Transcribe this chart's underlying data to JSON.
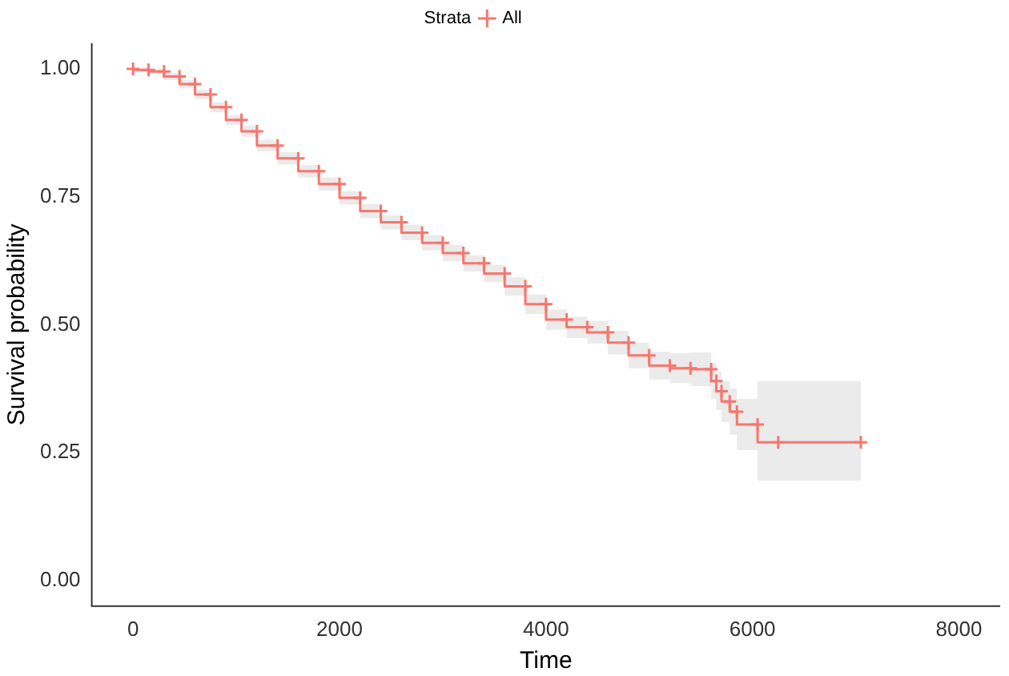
{
  "chart_data": {
    "type": "step",
    "xlabel": "Time",
    "ylabel": "Survival probability",
    "legend_title": "Strata",
    "legend": "top",
    "marker": "cross",
    "grid": false,
    "xlim": [
      -400,
      8400
    ],
    "xticks": [
      0,
      2000,
      4000,
      6000,
      8000
    ],
    "ylim": [
      -0.05,
      1.05
    ],
    "yticks": [
      {
        "value": 0,
        "label": "0.00"
      },
      {
        "value": 0.25,
        "label": "0.25"
      },
      {
        "value": 0.5,
        "label": "0.50"
      },
      {
        "value": 0.75,
        "label": "0.75"
      },
      {
        "value": 1,
        "label": "1.00"
      }
    ],
    "x": [
      0,
      150,
      300,
      450,
      600,
      750,
      900,
      1050,
      1200,
      1400,
      1600,
      1800,
      2000,
      2200,
      2400,
      2600,
      2800,
      3000,
      3200,
      3400,
      3600,
      3800,
      4000,
      4200,
      4400,
      4600,
      4800,
      5000,
      5200,
      5400,
      5600,
      5650,
      5700,
      5780,
      5850,
      6050,
      6250,
      7050
    ],
    "series": [
      {
        "name": "All",
        "color": "#f8766d",
        "values": [
          1.0,
          0.998,
          0.995,
          0.985,
          0.97,
          0.95,
          0.925,
          0.9,
          0.878,
          0.85,
          0.825,
          0.8,
          0.775,
          0.748,
          0.722,
          0.7,
          0.68,
          0.66,
          0.64,
          0.62,
          0.6,
          0.575,
          0.54,
          0.51,
          0.495,
          0.485,
          0.465,
          0.44,
          0.42,
          0.415,
          0.413,
          0.39,
          0.37,
          0.35,
          0.33,
          0.305,
          0.27,
          0.27
        ],
        "lower": [
          1.0,
          0.995,
          0.99,
          0.978,
          0.962,
          0.941,
          0.915,
          0.89,
          0.867,
          0.839,
          0.813,
          0.788,
          0.762,
          0.735,
          0.708,
          0.686,
          0.665,
          0.645,
          0.624,
          0.604,
          0.583,
          0.557,
          0.521,
          0.49,
          0.474,
          0.463,
          0.442,
          0.415,
          0.393,
          0.386,
          0.38,
          0.355,
          0.333,
          0.31,
          0.285,
          0.255,
          0.195,
          0.195
        ],
        "upper": [
          1.0,
          1.0,
          1.0,
          0.992,
          0.978,
          0.959,
          0.935,
          0.91,
          0.889,
          0.861,
          0.837,
          0.812,
          0.788,
          0.761,
          0.736,
          0.714,
          0.695,
          0.675,
          0.656,
          0.636,
          0.617,
          0.593,
          0.559,
          0.53,
          0.516,
          0.507,
          0.488,
          0.465,
          0.447,
          0.444,
          0.446,
          0.425,
          0.407,
          0.39,
          0.375,
          0.355,
          0.39,
          0.39
        ]
      }
    ]
  }
}
